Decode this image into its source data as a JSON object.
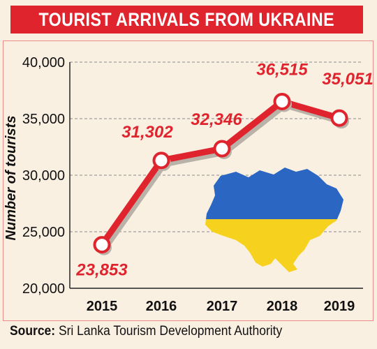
{
  "title": "TOURIST ARRIVALS FROM UKRAINE",
  "source": {
    "label": "Source:",
    "text": "Sri Lanka Tourism Development Authority"
  },
  "colors": {
    "title_bg": "#e0242e",
    "line": "#e0242e",
    "shadow": "#b9b2a9",
    "panel_border": "#ee8a88",
    "background": "#faf0e2",
    "flag_blue": "#2a66c2",
    "flag_yellow": "#f6d21e"
  },
  "chart_data": {
    "type": "line",
    "title": "TOURIST ARRIVALS FROM UKRAINE",
    "xlabel": "",
    "ylabel": "Number of tourists",
    "categories": [
      "2015",
      "2016",
      "2017",
      "2018",
      "2019"
    ],
    "values": [
      23853,
      31302,
      32346,
      36515,
      35051
    ],
    "data_labels": [
      "23,853",
      "31,302",
      "32,346",
      "36,515",
      "35,051"
    ],
    "ylim": [
      20000,
      40000
    ],
    "yticks": [
      20000,
      25000,
      30000,
      35000,
      40000
    ],
    "ytick_labels": [
      "20,000",
      "25,000",
      "30,000",
      "35,000",
      "40,000"
    ],
    "grid": "dashed horizontal",
    "legend": "none",
    "illustration": "ukraine-flag-map"
  }
}
